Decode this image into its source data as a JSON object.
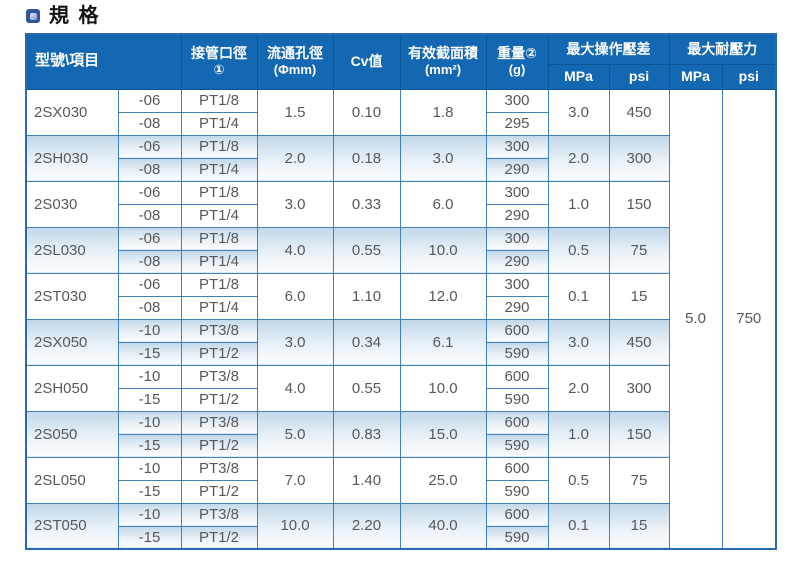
{
  "page": {
    "title": "規 格"
  },
  "colors": {
    "header_bg": "#1368b1",
    "header_text": "#ffffff",
    "border_blue": "#4080bd",
    "outer_border": "#2a69ac",
    "shaded_row_top": "#c2d7e8",
    "body_text": "#55595d",
    "title_icon": "#33539f"
  },
  "table": {
    "headers": {
      "model_item": "型號\\項目",
      "port_line1": "接管口徑",
      "port_line2": "①",
      "orifice_line1": "流通孔徑",
      "orifice_line2": "(Φmm)",
      "cv": "Cv值",
      "area_line1": "有效截面積",
      "area_line2": "(mm²)",
      "weight_line1": "重量②",
      "weight_line2": "(g)",
      "op_diff": "最大操作壓差",
      "proof_pressure": "最大耐壓力",
      "unit_mpa": "MPa",
      "unit_psi": "psi"
    },
    "groups": [
      {
        "model": "2SX030",
        "shaded": false,
        "orifice": "1.5",
        "cv": "0.10",
        "area": "1.8",
        "mpa": "3.0",
        "psi": "450",
        "subs": [
          {
            "code": "-06",
            "pt": "PT1/8",
            "weight": "300"
          },
          {
            "code": "-08",
            "pt": "PT1/4",
            "weight": "295"
          }
        ]
      },
      {
        "model": "2SH030",
        "shaded": true,
        "orifice": "2.0",
        "cv": "0.18",
        "area": "3.0",
        "mpa": "2.0",
        "psi": "300",
        "subs": [
          {
            "code": "-06",
            "pt": "PT1/8",
            "weight": "300"
          },
          {
            "code": "-08",
            "pt": "PT1/4",
            "weight": "290"
          }
        ]
      },
      {
        "model": "2S030",
        "shaded": false,
        "orifice": "3.0",
        "cv": "0.33",
        "area": "6.0",
        "mpa": "1.0",
        "psi": "150",
        "subs": [
          {
            "code": "-06",
            "pt": "PT1/8",
            "weight": "300"
          },
          {
            "code": "-08",
            "pt": "PT1/4",
            "weight": "290"
          }
        ]
      },
      {
        "model": "2SL030",
        "shaded": true,
        "orifice": "4.0",
        "cv": "0.55",
        "area": "10.0",
        "mpa": "0.5",
        "psi": "75",
        "subs": [
          {
            "code": "-06",
            "pt": "PT1/8",
            "weight": "300"
          },
          {
            "code": "-08",
            "pt": "PT1/4",
            "weight": "290"
          }
        ]
      },
      {
        "model": "2ST030",
        "shaded": false,
        "orifice": "6.0",
        "cv": "1.10",
        "area": "12.0",
        "mpa": "0.1",
        "psi": "15",
        "subs": [
          {
            "code": "-06",
            "pt": "PT1/8",
            "weight": "300"
          },
          {
            "code": "-08",
            "pt": "PT1/4",
            "weight": "290"
          }
        ]
      },
      {
        "model": "2SX050",
        "shaded": true,
        "orifice": "3.0",
        "cv": "0.34",
        "area": "6.1",
        "mpa": "3.0",
        "psi": "450",
        "subs": [
          {
            "code": "-10",
            "pt": "PT3/8",
            "weight": "600"
          },
          {
            "code": "-15",
            "pt": "PT1/2",
            "weight": "590"
          }
        ]
      },
      {
        "model": "2SH050",
        "shaded": false,
        "orifice": "4.0",
        "cv": "0.55",
        "area": "10.0",
        "mpa": "2.0",
        "psi": "300",
        "subs": [
          {
            "code": "-10",
            "pt": "PT3/8",
            "weight": "600"
          },
          {
            "code": "-15",
            "pt": "PT1/2",
            "weight": "590"
          }
        ]
      },
      {
        "model": "2S050",
        "shaded": true,
        "orifice": "5.0",
        "cv": "0.83",
        "area": "15.0",
        "mpa": "1.0",
        "psi": "150",
        "subs": [
          {
            "code": "-10",
            "pt": "PT3/8",
            "weight": "600"
          },
          {
            "code": "-15",
            "pt": "PT1/2",
            "weight": "590"
          }
        ]
      },
      {
        "model": "2SL050",
        "shaded": false,
        "orifice": "7.0",
        "cv": "1.40",
        "area": "25.0",
        "mpa": "0.5",
        "psi": "75",
        "subs": [
          {
            "code": "-10",
            "pt": "PT3/8",
            "weight": "600"
          },
          {
            "code": "-15",
            "pt": "PT1/2",
            "weight": "590"
          }
        ]
      },
      {
        "model": "2ST050",
        "shaded": true,
        "orifice": "10.0",
        "cv": "2.20",
        "area": "40.0",
        "mpa": "0.1",
        "psi": "15",
        "subs": [
          {
            "code": "-10",
            "pt": "PT3/8",
            "weight": "600"
          },
          {
            "code": "-15",
            "pt": "PT1/2",
            "weight": "590"
          }
        ]
      }
    ],
    "proof": {
      "mpa": "5.0",
      "psi": "750"
    }
  }
}
